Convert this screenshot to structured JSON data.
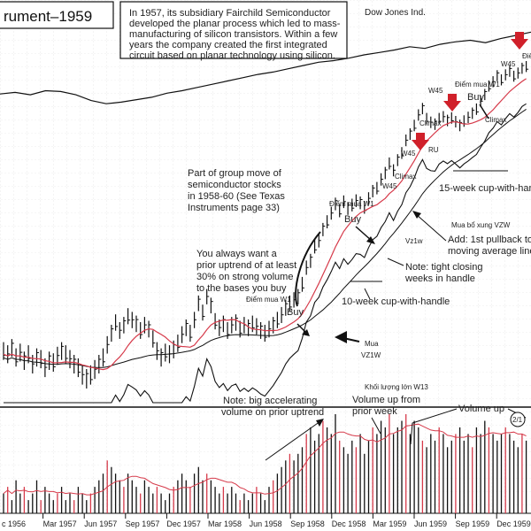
{
  "title": "rument–1959",
  "dow_label": "Dow Jones Ind.",
  "intro_lines": [
    "In 1957, its subsidiary Fairchild Semiconductor",
    "developed the planar process which led to mass-",
    "manufacturing of silicon transistors. Within a few",
    "years the company created the first integrated",
    "circuit based on planar technology using silicon."
  ],
  "annotations": {
    "group_move": [
      "Part of group move of",
      "semiconductor stocks",
      "in 1958-60 (See Texas",
      "Instruments page 33)"
    ],
    "prior_uptrend": [
      "You always want a",
      "prior uptrend of at least",
      "30% on strong volume",
      "to the bases you buy"
    ],
    "buy_vn_1": "Điểm mua W1",
    "buy_1": "Buy",
    "buy_vn_2": "Điểm mua W1",
    "buy_2": "Buy",
    "buy_vn_3": "Điểm mua W1",
    "buy_3": "Buy",
    "mua": "Mua",
    "vz1w_a": "VZ1W",
    "vz1w_b": "Vz1w",
    "ten_week": "10-week cup-with-handle",
    "tight": [
      "Note: tight closing",
      "weeks in handle"
    ],
    "add_pullback": [
      "Add: 1st pullback to",
      "moving average line"
    ],
    "mua_bo_sung": "Mua bổ xung VZW",
    "fifteen_week": "15-week cup-with-handle",
    "climax_1": "Climax",
    "climax_2": "Climax",
    "climax_3": "Climax",
    "w45_1": "W45",
    "w45_2": "W45",
    "w45_3": "W45",
    "w45_4": "W45",
    "ru": "RU",
    "dien": "Điể",
    "note_volume": [
      "Note: big accelerating",
      "volume on prior uptrend"
    ],
    "khoi_luong": "Khối lượng lớn W13",
    "volume_up_week": [
      "Volume up from",
      "prior week"
    ],
    "volume_up": "Volume up",
    "split": "2/1"
  },
  "chart_data": {
    "type": "line",
    "title": "rument–1959",
    "x_tick_labels": [
      "c 1956",
      "Mar 1957",
      "Jun 1957",
      "Sep 1957",
      "Dec 1957",
      "Mar 1958",
      "Jun 1958",
      "Sep 1958",
      "Dec 1958",
      "Mar 1959",
      "Jun 1959",
      "Sep 1959",
      "Dec 1959",
      "Ma"
    ],
    "series": [
      {
        "name": "Dow Jones Ind.",
        "kind": "index-line",
        "color": "#111111",
        "points": [
          [
            0,
            100
          ],
          [
            10,
            102
          ],
          [
            18,
            99
          ],
          [
            25,
            104
          ],
          [
            30,
            103
          ],
          [
            34,
            99
          ],
          [
            37,
            92
          ],
          [
            40,
            88
          ],
          [
            44,
            90
          ],
          [
            48,
            93
          ],
          [
            52,
            96
          ],
          [
            56,
            101
          ],
          [
            60,
            104
          ],
          [
            64,
            108
          ],
          [
            68,
            112
          ],
          [
            72,
            116
          ],
          [
            76,
            120
          ],
          [
            80,
            124
          ],
          [
            84,
            127
          ],
          [
            88,
            131
          ],
          [
            92,
            135
          ],
          [
            96,
            139
          ],
          [
            100,
            141
          ],
          [
            104,
            144
          ],
          [
            108,
            148
          ],
          [
            112,
            151
          ],
          [
            116,
            154
          ],
          [
            120,
            158
          ],
          [
            124,
            156
          ],
          [
            128,
            161
          ],
          [
            132,
            164
          ],
          [
            136,
            166
          ],
          [
            140,
            163
          ],
          [
            144,
            168
          ],
          [
            148,
            172
          ],
          [
            152,
            176
          ]
        ]
      },
      {
        "name": "price",
        "kind": "weekly-price",
        "color": "#111111",
        "values": [
          9,
          8.8,
          9.2,
          8.6,
          8.9,
          8.4,
          8.8,
          8.2,
          8.6,
          8.5,
          8.0,
          8.4,
          8.3,
          8.7,
          9.0,
          8.8,
          8.5,
          8.2,
          8.0,
          7.6,
          7.4,
          7.6,
          7.9,
          8.2,
          8.6,
          9.4,
          10.2,
          11.0,
          10.4,
          10.8,
          11.5,
          11.2,
          10.9,
          10.4,
          10.8,
          10.5,
          9.8,
          9.0,
          8.6,
          8.9,
          8.8,
          9.1,
          9.5,
          10.1,
          10.6,
          10.2,
          11.2,
          12.6,
          11.8,
          13.2,
          12.4,
          11.1,
          10.6,
          10.9,
          10.4,
          10.8,
          11.0,
          10.5,
          10.8,
          10.6,
          10.9,
          10.7,
          10.4,
          10.2,
          10.5,
          10.8,
          11.2,
          11.6,
          12.2,
          12.6,
          12.9,
          13.2,
          14.4,
          16.2,
          17.0,
          18.8,
          19.6,
          21.2,
          22.4,
          23.8,
          25.4,
          24.2,
          25.8,
          24.6,
          25.2,
          26.0,
          25.6,
          24.8,
          26.4,
          27.8,
          28.4,
          30.2,
          31.6,
          33.8,
          32.2,
          34.6,
          36.4,
          39.8,
          41.6,
          44.2,
          47.6,
          49.8,
          46.4,
          45.2,
          44.6,
          46.4,
          47.0,
          45.8,
          46.6,
          45.4,
          44.2,
          45.6,
          46.8,
          48.2,
          49.6,
          52.4,
          55.0,
          58.4,
          60.2,
          62.8,
          61.0,
          63.2,
          64.8,
          62.6,
          64.0,
          66.2,
          67.0
        ]
      },
      {
        "name": "moving average",
        "kind": "moving-average",
        "color": "#d63a4a"
      },
      {
        "name": "relative strength",
        "kind": "rs-line",
        "color": "#111111"
      }
    ],
    "volume": {
      "kind": "weekly-volume",
      "color": "#111111",
      "ma_color": "#d63a4a",
      "values": [
        3,
        4,
        2,
        5,
        3,
        4,
        2,
        3,
        5,
        2,
        4,
        3,
        2,
        3,
        4,
        2,
        3,
        2,
        4,
        3,
        2,
        3,
        4,
        5,
        6,
        8,
        7,
        6,
        5,
        4,
        6,
        5,
        4,
        3,
        5,
        4,
        3,
        4,
        3,
        2,
        3,
        4,
        5,
        6,
        5,
        4,
        6,
        7,
        5,
        6,
        5,
        4,
        3,
        4,
        3,
        4,
        3,
        2,
        3,
        2,
        3,
        4,
        3,
        2,
        4,
        5,
        6,
        7,
        8,
        9,
        8,
        9,
        10,
        12,
        13,
        11,
        12,
        14,
        13,
        12,
        15,
        11,
        10,
        9,
        11,
        10,
        12,
        9,
        11,
        13,
        12,
        14,
        13,
        15,
        12,
        13,
        14,
        15,
        12,
        14,
        13,
        11,
        10,
        12,
        11,
        13,
        12,
        10,
        11,
        12,
        13,
        11,
        12,
        10,
        13,
        12,
        14,
        13,
        12,
        11,
        12,
        13,
        12,
        11,
        10,
        12,
        11
      ]
    },
    "grid": true,
    "legend": "none"
  }
}
